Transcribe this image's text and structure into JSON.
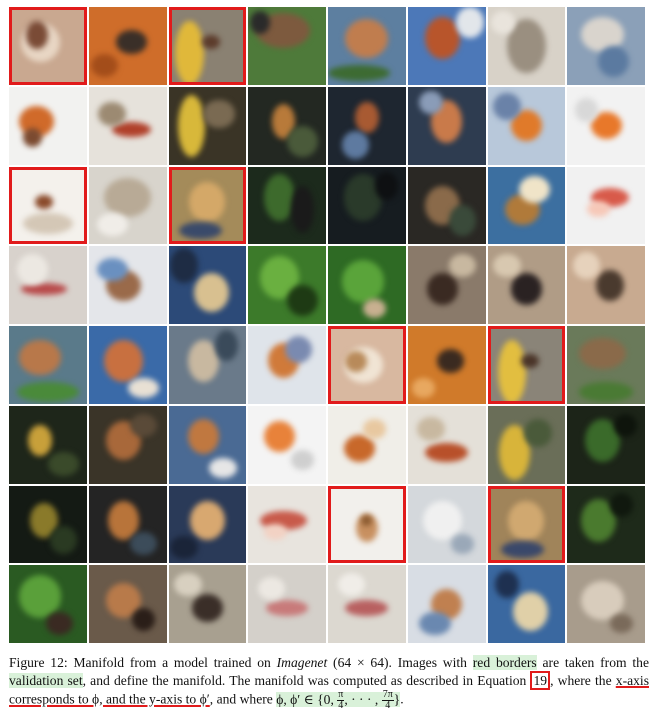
{
  "figure": {
    "rows": 8,
    "cols": 8,
    "tiles": [
      {
        "bg": "#c9a890",
        "blobs": [
          [
            "#e8d6c4",
            40,
            45,
            55,
            55
          ],
          [
            "#7a4b36",
            35,
            35,
            30,
            40
          ]
        ],
        "sel": true
      },
      {
        "bg": "#cf6d2a",
        "blobs": [
          [
            "#3a2f28",
            55,
            45,
            40,
            30
          ],
          [
            "#a34d1a",
            20,
            75,
            35,
            30
          ]
        ]
      },
      {
        "bg": "#8a8172",
        "blobs": [
          [
            "#e0b83a",
            25,
            60,
            40,
            90
          ],
          [
            "#5c3b2b",
            55,
            45,
            25,
            20
          ]
        ],
        "sel": true
      },
      {
        "bg": "#4e7a3a",
        "blobs": [
          [
            "#7d5a3e",
            45,
            30,
            70,
            45
          ],
          [
            "#2a2a2a",
            15,
            20,
            25,
            30
          ]
        ]
      },
      {
        "bg": "#5d7fa0",
        "blobs": [
          [
            "#c07d4e",
            50,
            40,
            55,
            50
          ],
          [
            "#3d6b32",
            40,
            85,
            80,
            20
          ]
        ]
      },
      {
        "bg": "#4c78b8",
        "blobs": [
          [
            "#b8552b",
            45,
            40,
            45,
            55
          ],
          [
            "#e2e6ea",
            80,
            20,
            35,
            40
          ]
        ]
      },
      {
        "bg": "#d8d2c8",
        "blobs": [
          [
            "#9a8f80",
            50,
            50,
            50,
            70
          ],
          [
            "#e9e4dc",
            20,
            20,
            30,
            30
          ]
        ]
      },
      {
        "bg": "#8ba0b8",
        "blobs": [
          [
            "#d9d4cd",
            45,
            35,
            55,
            45
          ],
          [
            "#5b7aa0",
            60,
            70,
            40,
            40
          ]
        ]
      },
      {
        "bg": "#f2f2f0",
        "blobs": [
          [
            "#d06a2a",
            35,
            45,
            45,
            40
          ],
          [
            "#7b4a30",
            30,
            65,
            25,
            25
          ]
        ]
      },
      {
        "bg": "#e6e2db",
        "blobs": [
          [
            "#b0402a",
            55,
            55,
            50,
            20
          ],
          [
            "#9c8a72",
            30,
            35,
            35,
            30
          ]
        ]
      },
      {
        "bg": "#3a3426",
        "blobs": [
          [
            "#d8b83a",
            30,
            50,
            35,
            80
          ],
          [
            "#7a6a52",
            65,
            35,
            40,
            35
          ]
        ]
      },
      {
        "bg": "#232822",
        "blobs": [
          [
            "#b87a3a",
            45,
            45,
            30,
            45
          ],
          [
            "#4a5a3a",
            70,
            70,
            40,
            40
          ]
        ]
      },
      {
        "bg": "#1e2630",
        "blobs": [
          [
            "#a85a32",
            50,
            40,
            30,
            40
          ],
          [
            "#5e7aa0",
            35,
            75,
            35,
            35
          ]
        ]
      },
      {
        "bg": "#2e3c50",
        "blobs": [
          [
            "#c97a4a",
            50,
            45,
            40,
            55
          ],
          [
            "#8a9cb8",
            30,
            20,
            30,
            30
          ]
        ]
      },
      {
        "bg": "#b8c8da",
        "blobs": [
          [
            "#e07a2a",
            50,
            50,
            40,
            40
          ],
          [
            "#6a82a8",
            25,
            25,
            35,
            35
          ]
        ]
      },
      {
        "bg": "#f2f2f2",
        "blobs": [
          [
            "#e8782a",
            50,
            50,
            40,
            35
          ],
          [
            "#d8d8d8",
            25,
            30,
            30,
            30
          ]
        ]
      },
      {
        "bg": "#f4f1ec",
        "blobs": [
          [
            "#d4c7b6",
            50,
            75,
            70,
            30
          ],
          [
            "#8a4a2a",
            45,
            45,
            25,
            20
          ]
        ],
        "sel": true
      },
      {
        "bg": "#d8d4cc",
        "blobs": [
          [
            "#b8aa96",
            50,
            40,
            60,
            50
          ],
          [
            "#f0ede8",
            30,
            75,
            40,
            30
          ]
        ]
      },
      {
        "bg": "#a48b5a",
        "blobs": [
          [
            "#d4a868",
            50,
            45,
            50,
            55
          ],
          [
            "#3a4a6a",
            40,
            85,
            60,
            25
          ]
        ],
        "sel": true
      },
      {
        "bg": "#1c2a1c",
        "blobs": [
          [
            "#3d6a2c",
            40,
            40,
            40,
            60
          ],
          [
            "#1a1a1a",
            70,
            55,
            30,
            60
          ]
        ]
      },
      {
        "bg": "#161c20",
        "blobs": [
          [
            "#2a3a2a",
            45,
            40,
            50,
            60
          ],
          [
            "#0e1012",
            75,
            25,
            30,
            35
          ]
        ]
      },
      {
        "bg": "#2a2824",
        "blobs": [
          [
            "#8a6a4a",
            45,
            50,
            45,
            50
          ],
          [
            "#3a4a3a",
            70,
            70,
            35,
            40
          ]
        ]
      },
      {
        "bg": "#3c6fa0",
        "blobs": [
          [
            "#b07a3a",
            45,
            55,
            45,
            40
          ],
          [
            "#f0e4c8",
            60,
            30,
            40,
            35
          ]
        ]
      },
      {
        "bg": "#f1f1f1",
        "blobs": [
          [
            "#d85a4a",
            55,
            40,
            50,
            25
          ],
          [
            "#f6c8b8",
            40,
            55,
            30,
            20
          ]
        ]
      },
      {
        "bg": "#d8d2cc",
        "blobs": [
          [
            "#b84a4a",
            45,
            55,
            60,
            15
          ],
          [
            "#ece8e2",
            30,
            30,
            40,
            40
          ]
        ]
      },
      {
        "bg": "#e4e6ea",
        "blobs": [
          [
            "#9a6a4a",
            45,
            50,
            45,
            40
          ],
          [
            "#6a90c0",
            30,
            30,
            40,
            30
          ]
        ]
      },
      {
        "bg": "#2c4a78",
        "blobs": [
          [
            "#d8c090",
            55,
            60,
            45,
            50
          ],
          [
            "#1e2c44",
            20,
            25,
            35,
            45
          ]
        ]
      },
      {
        "bg": "#3c7a2a",
        "blobs": [
          [
            "#6ab040",
            40,
            40,
            50,
            55
          ],
          [
            "#1e3a14",
            70,
            70,
            40,
            40
          ]
        ]
      },
      {
        "bg": "#2e6a24",
        "blobs": [
          [
            "#5aa43a",
            45,
            45,
            55,
            55
          ],
          [
            "#c8b090",
            60,
            80,
            30,
            25
          ]
        ]
      },
      {
        "bg": "#8a7a6a",
        "blobs": [
          [
            "#3a2a22",
            45,
            55,
            40,
            40
          ],
          [
            "#c8b8a0",
            70,
            25,
            35,
            30
          ]
        ]
      },
      {
        "bg": "#b09c86",
        "blobs": [
          [
            "#2a2222",
            50,
            55,
            40,
            40
          ],
          [
            "#d8c8b0",
            25,
            25,
            35,
            30
          ]
        ]
      },
      {
        "bg": "#c8aa90",
        "blobs": [
          [
            "#4a3a2e",
            55,
            50,
            35,
            40
          ],
          [
            "#e6d2bc",
            25,
            25,
            35,
            35
          ]
        ]
      },
      {
        "bg": "#5a7a8a",
        "blobs": [
          [
            "#b8784a",
            40,
            40,
            55,
            45
          ],
          [
            "#4a8a3a",
            50,
            85,
            80,
            25
          ]
        ]
      },
      {
        "bg": "#3a6aa8",
        "blobs": [
          [
            "#c87040",
            45,
            45,
            50,
            55
          ],
          [
            "#e8e0d4",
            70,
            80,
            40,
            25
          ]
        ]
      },
      {
        "bg": "#6a7a8a",
        "blobs": [
          [
            "#c8b8a0",
            45,
            45,
            40,
            55
          ],
          [
            "#3a4a5a",
            75,
            25,
            30,
            40
          ]
        ]
      },
      {
        "bg": "#dfe4ea",
        "blobs": [
          [
            "#d07a3a",
            45,
            45,
            40,
            45
          ],
          [
            "#7a8ab0",
            65,
            30,
            35,
            35
          ]
        ]
      },
      {
        "bg": "#d8b8a0",
        "blobs": [
          [
            "#f0e4d4",
            45,
            50,
            55,
            50
          ],
          [
            "#b88a5a",
            35,
            45,
            30,
            30
          ]
        ],
        "sel": true
      },
      {
        "bg": "#d07a2a",
        "blobs": [
          [
            "#3a2a20",
            55,
            45,
            35,
            30
          ],
          [
            "#e8a860",
            20,
            80,
            30,
            25
          ]
        ]
      },
      {
        "bg": "#8a8478",
        "blobs": [
          [
            "#e2be40",
            30,
            60,
            40,
            90
          ],
          [
            "#4a3428",
            55,
            45,
            25,
            20
          ]
        ],
        "sel": true
      },
      {
        "bg": "#6a7a5a",
        "blobs": [
          [
            "#8a6a4a",
            45,
            35,
            60,
            40
          ],
          [
            "#4a7a34",
            50,
            85,
            70,
            25
          ]
        ]
      },
      {
        "bg": "#1e261a",
        "blobs": [
          [
            "#c8a03a",
            40,
            45,
            30,
            40
          ],
          [
            "#3a4a2a",
            70,
            75,
            40,
            30
          ]
        ]
      },
      {
        "bg": "#3a3428",
        "blobs": [
          [
            "#a8683a",
            45,
            45,
            45,
            50
          ],
          [
            "#5a4a38",
            70,
            25,
            35,
            30
          ]
        ]
      },
      {
        "bg": "#4a6a94",
        "blobs": [
          [
            "#c07840",
            45,
            40,
            40,
            45
          ],
          [
            "#e6e6e6",
            70,
            80,
            35,
            25
          ]
        ]
      },
      {
        "bg": "#f4f4f4",
        "blobs": [
          [
            "#e8823a",
            40,
            40,
            40,
            40
          ],
          [
            "#cfcfcf",
            70,
            70,
            30,
            25
          ]
        ]
      },
      {
        "bg": "#f0eee8",
        "blobs": [
          [
            "#c8682a",
            40,
            55,
            40,
            35
          ],
          [
            "#e8c8a0",
            60,
            30,
            30,
            25
          ]
        ]
      },
      {
        "bg": "#e4e0d8",
        "blobs": [
          [
            "#b8502a",
            50,
            60,
            55,
            25
          ],
          [
            "#c8b8a0",
            30,
            30,
            35,
            30
          ]
        ]
      },
      {
        "bg": "#6a6e58",
        "blobs": [
          [
            "#d8b43a",
            35,
            60,
            40,
            70
          ],
          [
            "#4a5a3a",
            65,
            35,
            35,
            35
          ]
        ]
      },
      {
        "bg": "#1c2418",
        "blobs": [
          [
            "#3a6a2a",
            45,
            45,
            45,
            55
          ],
          [
            "#0e140c",
            75,
            25,
            30,
            30
          ]
        ]
      },
      {
        "bg": "#141a14",
        "blobs": [
          [
            "#8a7a2a",
            45,
            45,
            35,
            45
          ],
          [
            "#2a3a22",
            70,
            70,
            35,
            35
          ]
        ]
      },
      {
        "bg": "#242424",
        "blobs": [
          [
            "#b8743a",
            45,
            45,
            40,
            50
          ],
          [
            "#3c4c5a",
            70,
            75,
            35,
            30
          ]
        ]
      },
      {
        "bg": "#2a3a58",
        "blobs": [
          [
            "#d8a870",
            50,
            45,
            45,
            50
          ],
          [
            "#1a2438",
            20,
            80,
            35,
            30
          ]
        ]
      },
      {
        "bg": "#e8e4de",
        "blobs": [
          [
            "#c85a4a",
            45,
            45,
            60,
            25
          ],
          [
            "#f2d2c4",
            35,
            60,
            30,
            20
          ]
        ]
      },
      {
        "bg": "#f2f0ec",
        "blobs": [
          [
            "#c89060",
            50,
            55,
            30,
            40
          ],
          [
            "#8a5a30",
            50,
            45,
            15,
            15
          ]
        ],
        "sel": true
      },
      {
        "bg": "#d4d8dc",
        "blobs": [
          [
            "#f0f0f0",
            45,
            45,
            50,
            50
          ],
          [
            "#9aa8b8",
            70,
            75,
            30,
            25
          ]
        ]
      },
      {
        "bg": "#a0845a",
        "blobs": [
          [
            "#d0a870",
            50,
            45,
            50,
            55
          ],
          [
            "#3a486a",
            45,
            85,
            60,
            25
          ]
        ],
        "sel": true
      },
      {
        "bg": "#1e2a1a",
        "blobs": [
          [
            "#4a7a2e",
            40,
            45,
            45,
            55
          ],
          [
            "#10180e",
            70,
            25,
            30,
            30
          ]
        ]
      },
      {
        "bg": "#2a5a22",
        "blobs": [
          [
            "#5aa03a",
            40,
            40,
            55,
            55
          ],
          [
            "#3a2a22",
            65,
            75,
            35,
            30
          ]
        ]
      },
      {
        "bg": "#6a5a4a",
        "blobs": [
          [
            "#b87a4a",
            45,
            45,
            45,
            45
          ],
          [
            "#2a1e18",
            70,
            70,
            30,
            30
          ]
        ]
      },
      {
        "bg": "#a8a090",
        "blobs": [
          [
            "#3a2e28",
            50,
            55,
            40,
            35
          ],
          [
            "#d8d0c0",
            25,
            25,
            35,
            30
          ]
        ]
      },
      {
        "bg": "#d4d0ca",
        "blobs": [
          [
            "#c87a7a",
            50,
            55,
            55,
            20
          ],
          [
            "#ece8e2",
            30,
            30,
            35,
            30
          ]
        ]
      },
      {
        "bg": "#dcd8d0",
        "blobs": [
          [
            "#b86060",
            50,
            55,
            55,
            20
          ],
          [
            "#f0ede8",
            30,
            25,
            35,
            30
          ]
        ]
      },
      {
        "bg": "#d8dde4",
        "blobs": [
          [
            "#c08050",
            50,
            50,
            40,
            40
          ],
          [
            "#6a88b0",
            35,
            75,
            40,
            30
          ]
        ]
      },
      {
        "bg": "#3a68a0",
        "blobs": [
          [
            "#e0d0a8",
            55,
            60,
            45,
            50
          ],
          [
            "#1e3050",
            25,
            25,
            30,
            35
          ]
        ]
      },
      {
        "bg": "#a89c8c",
        "blobs": [
          [
            "#d8ccbc",
            45,
            45,
            55,
            50
          ],
          [
            "#7a6a5a",
            70,
            75,
            30,
            25
          ]
        ]
      }
    ]
  },
  "caption": {
    "lead": "Figure 12: Manifold from a model trained on ",
    "dataset": "Imagenet",
    "res": " (64 × 64). Images with ",
    "red_borders": "red borders",
    "t1": " are taken from the ",
    "validation_set": "validation set",
    "t2": ", and define the manifold. The manifold was computed as described in Equation ",
    "eq": "19",
    "t3": ", where the ",
    "x_axis": "x-axis corresponds to ϕ, and the y-axis to ϕ′",
    "t4": ", and where ",
    "set_a": "ϕ, ϕ′ ∈ {0, ",
    "f1n": "π",
    "f1d": "4",
    "set_b": ", · · · , ",
    "f2n": "7π",
    "f2d": "4",
    "set_c": "}",
    "t5": "."
  }
}
